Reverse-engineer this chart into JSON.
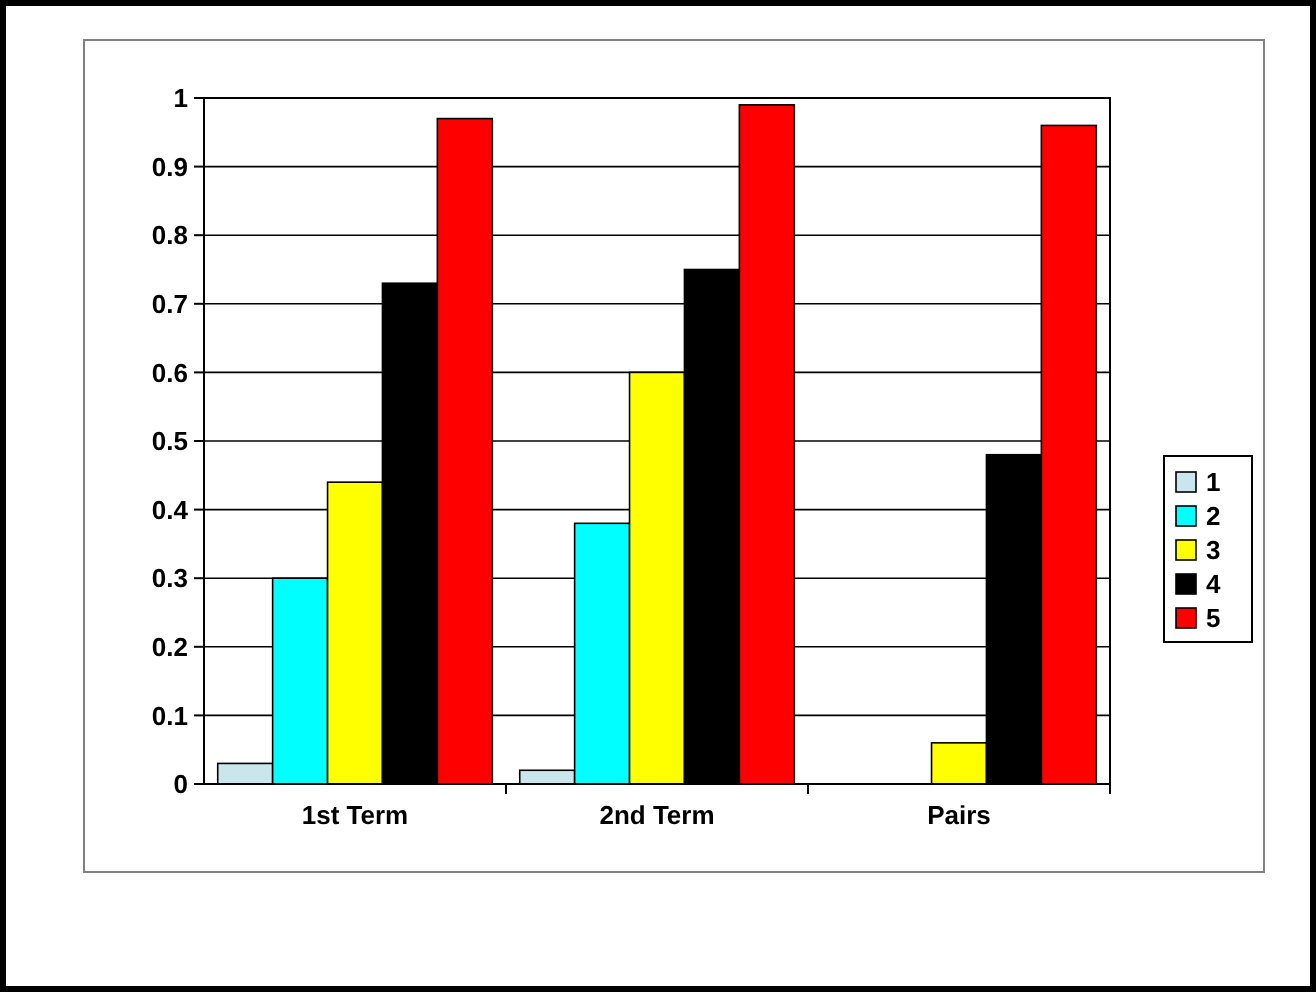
{
  "chart_data": {
    "type": "bar",
    "categories": [
      "1st Term",
      "2nd Term",
      "Pairs"
    ],
    "series": [
      {
        "name": "1",
        "color": "#c8e6ec",
        "values": [
          0.03,
          0.02,
          0
        ]
      },
      {
        "name": "2",
        "color": "#00ffff",
        "values": [
          0.3,
          0.38,
          0
        ]
      },
      {
        "name": "3",
        "color": "#ffff00",
        "values": [
          0.44,
          0.6,
          0.06
        ]
      },
      {
        "name": "4",
        "color": "#000000",
        "values": [
          0.73,
          0.75,
          0.48
        ]
      },
      {
        "name": "5",
        "color": "#ff0000",
        "values": [
          0.97,
          0.99,
          0.96
        ]
      }
    ],
    "ylim": [
      0,
      1
    ],
    "yticks": [
      0,
      0.1,
      0.2,
      0.3,
      0.4,
      0.5,
      0.6,
      0.7,
      0.8,
      0.9,
      1
    ],
    "grid": "y",
    "legend": "right"
  }
}
